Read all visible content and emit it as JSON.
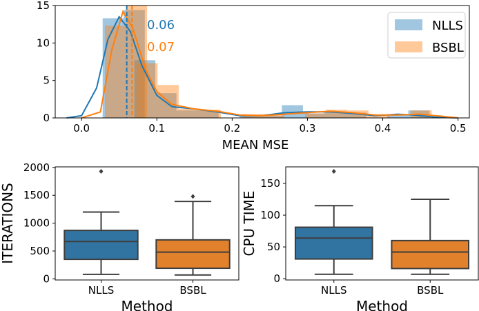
{
  "colors": {
    "nlls": "#1f77b4",
    "bsbl": "#ff7f0e",
    "box_nlls": "#3274a1",
    "box_bsbl": "#e1812c",
    "line": "#3d3d3d"
  },
  "chart_data": [
    {
      "type": "histogram",
      "xlabel": "MEAN MSE",
      "ylabel": "",
      "xlim": [
        -0.035,
        0.515
      ],
      "ylim": [
        0,
        15
      ],
      "xticks": [
        "0.0",
        "0.1",
        "0.2",
        "0.3",
        "0.4",
        "0.5"
      ],
      "yticks": [
        "0",
        "5",
        "10",
        "15"
      ],
      "legend_position": "top-right",
      "bin_width": 0.028,
      "series": [
        {
          "name": "NLLS",
          "bins": [
            [
              0.028,
              13.3
            ],
            [
              0.056,
              14.4
            ],
            [
              0.07,
              7.7
            ],
            [
              0.098,
              3.3
            ],
            [
              0.126,
              1.0
            ],
            [
              0.154,
              1.0
            ],
            [
              0.21,
              0.4
            ],
            [
              0.238,
              0.3
            ],
            [
              0.266,
              1.7
            ],
            [
              0.294,
              0.6
            ],
            [
              0.322,
              0.8
            ],
            [
              0.35,
              0.7
            ],
            [
              0.406,
              0.4
            ],
            [
              0.434,
              1.0
            ]
          ],
          "kde": [
            [
              -0.02,
              0
            ],
            [
              0.0,
              0.3
            ],
            [
              0.02,
              4.0
            ],
            [
              0.035,
              10.5
            ],
            [
              0.05,
              13.5
            ],
            [
              0.065,
              11.5
            ],
            [
              0.08,
              7.0
            ],
            [
              0.1,
              3.0
            ],
            [
              0.12,
              1.5
            ],
            [
              0.15,
              1.2
            ],
            [
              0.18,
              0.8
            ],
            [
              0.21,
              0.3
            ],
            [
              0.24,
              0.3
            ],
            [
              0.27,
              0.7
            ],
            [
              0.3,
              0.8
            ],
            [
              0.33,
              0.8
            ],
            [
              0.36,
              0.6
            ],
            [
              0.39,
              0.3
            ],
            [
              0.42,
              0.5
            ],
            [
              0.44,
              0.4
            ],
            [
              0.47,
              0.1
            ],
            [
              0.5,
              0.0
            ]
          ],
          "mean": 0.06,
          "mean_label": "0.06"
        },
        {
          "name": "BSBL",
          "bins": [
            [
              0.031,
              12.3
            ],
            [
              0.059,
              15.0
            ],
            [
              0.073,
              7.3
            ],
            [
              0.101,
              4.4
            ],
            [
              0.129,
              1.2
            ],
            [
              0.157,
              1.1
            ],
            [
              0.213,
              0.5
            ],
            [
              0.241,
              0.5
            ],
            [
              0.297,
              0.6
            ],
            [
              0.325,
              1.1
            ],
            [
              0.353,
              1.0
            ],
            [
              0.381,
              0.3
            ],
            [
              0.437,
              1.0
            ]
          ],
          "kde": [
            [
              0.0,
              0
            ],
            [
              0.025,
              0.8
            ],
            [
              0.04,
              9.0
            ],
            [
              0.055,
              14.2
            ],
            [
              0.068,
              12.0
            ],
            [
              0.085,
              6.5
            ],
            [
              0.1,
              3.5
            ],
            [
              0.12,
              1.8
            ],
            [
              0.15,
              1.2
            ],
            [
              0.18,
              0.9
            ],
            [
              0.21,
              0.4
            ],
            [
              0.24,
              0.3
            ],
            [
              0.27,
              0.5
            ],
            [
              0.3,
              0.7
            ],
            [
              0.33,
              0.9
            ],
            [
              0.36,
              0.7
            ],
            [
              0.39,
              0.4
            ],
            [
              0.42,
              0.4
            ],
            [
              0.45,
              0.5
            ],
            [
              0.48,
              0.2
            ],
            [
              0.5,
              0.0
            ]
          ],
          "mean": 0.067,
          "mean_label": "0.07"
        }
      ]
    },
    {
      "type": "box",
      "xlabel": "Method",
      "ylabel": "ITERATIONS",
      "ylim": [
        -20,
        2010
      ],
      "yticks": [
        0,
        500,
        1000,
        1500,
        2000
      ],
      "categories": [
        "NLLS",
        "BSBL"
      ],
      "series": [
        {
          "name": "NLLS",
          "whisker_low": 80,
          "q1": 350,
          "median": 670,
          "q3": 870,
          "whisker_high": 1200,
          "outliers": [
            1930
          ]
        },
        {
          "name": "BSBL",
          "whisker_low": 70,
          "q1": 190,
          "median": 480,
          "q3": 700,
          "whisker_high": 1390,
          "outliers": [
            1480
          ]
        }
      ]
    },
    {
      "type": "box",
      "xlabel": "Method",
      "ylabel": "CPU TIME",
      "ylim": [
        -2,
        176
      ],
      "yticks": [
        0,
        50,
        100,
        150
      ],
      "categories": [
        "NLLS",
        "BSBL"
      ],
      "series": [
        {
          "name": "NLLS",
          "whisker_low": 7,
          "q1": 31,
          "median": 64,
          "q3": 81,
          "whisker_high": 115,
          "outliers": [
            169
          ]
        },
        {
          "name": "BSBL",
          "whisker_low": 7,
          "q1": 16,
          "median": 42,
          "q3": 60,
          "whisker_high": 125,
          "outliers": []
        }
      ]
    }
  ]
}
